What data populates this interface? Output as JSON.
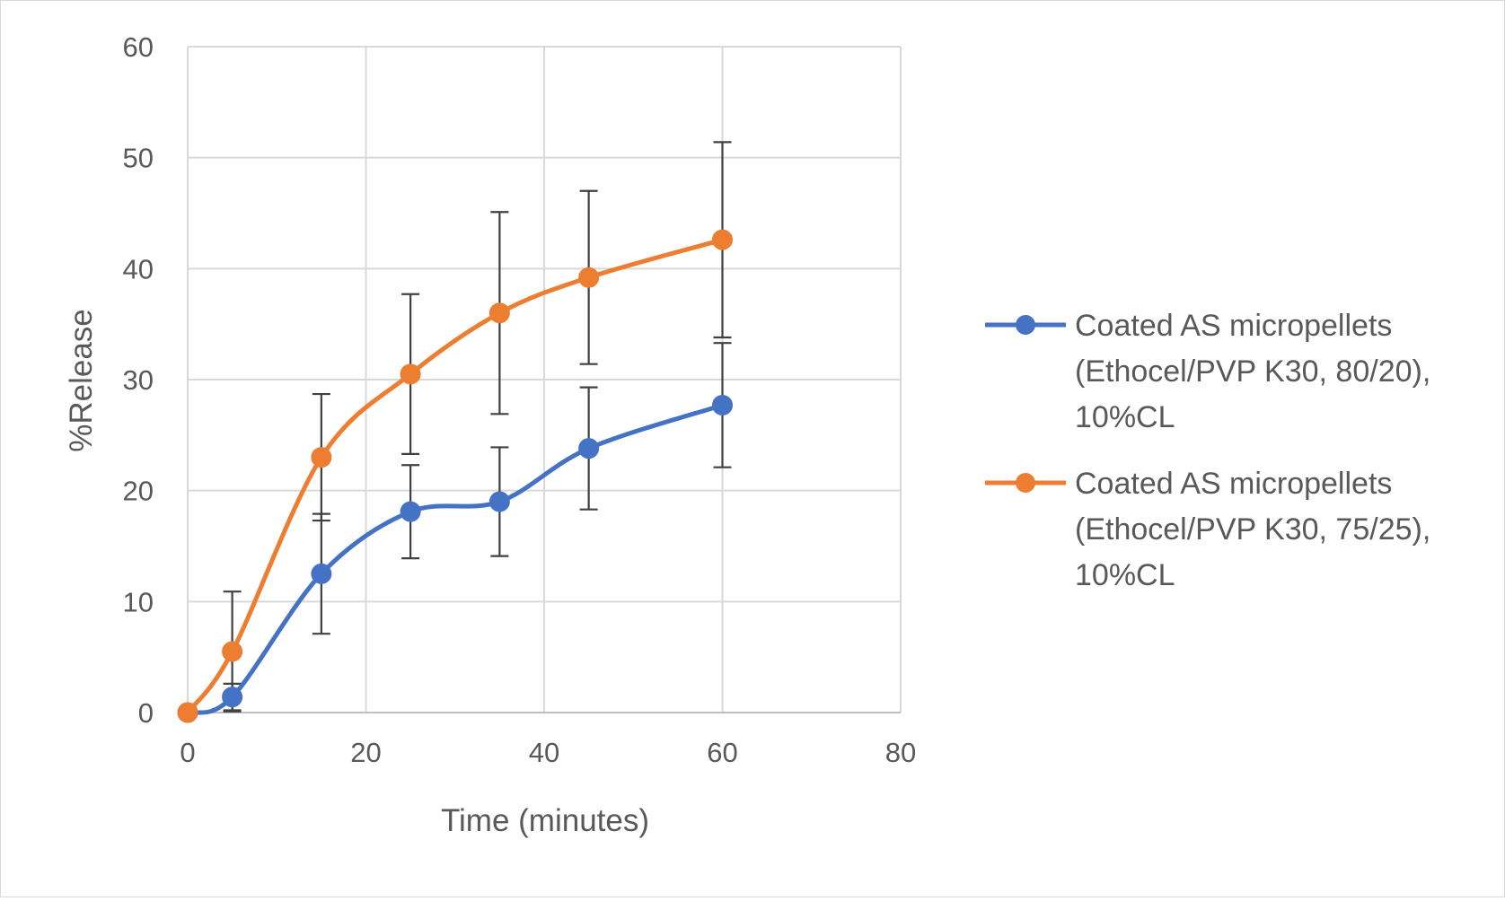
{
  "chart_data": {
    "type": "scatter",
    "xlabel": "Time (minutes)",
    "ylabel": "%Release",
    "xlim": [
      0,
      80
    ],
    "ylim": [
      0,
      60
    ],
    "x_ticks": [
      0,
      20,
      40,
      60,
      80
    ],
    "y_ticks": [
      0,
      10,
      20,
      30,
      40,
      50,
      60
    ],
    "grid": true,
    "smooth_lines": true,
    "error_bars": true,
    "legend_position": "right",
    "series": [
      {
        "name_lines": [
          "Coated AS micropellets",
          "(Ethocel/PVP K30, 80/20),",
          "10%CL"
        ],
        "color": "#4472C4",
        "x": [
          0,
          5,
          15,
          25,
          35,
          45,
          60
        ],
        "y": [
          0,
          1.4,
          12.5,
          18.1,
          19.0,
          23.8,
          27.7
        ],
        "err": [
          0,
          1.2,
          5.4,
          4.2,
          4.9,
          5.5,
          5.6
        ]
      },
      {
        "name_lines": [
          "Coated AS micropellets",
          "(Ethocel/PVP K30, 75/25),",
          "10%CL"
        ],
        "color": "#ED7D31",
        "x": [
          0,
          5,
          15,
          25,
          35,
          45,
          60
        ],
        "y": [
          0,
          5.5,
          23.0,
          30.5,
          36.0,
          39.2,
          42.6
        ],
        "err": [
          0,
          5.4,
          5.7,
          7.2,
          9.1,
          7.8,
          8.8
        ]
      }
    ]
  }
}
